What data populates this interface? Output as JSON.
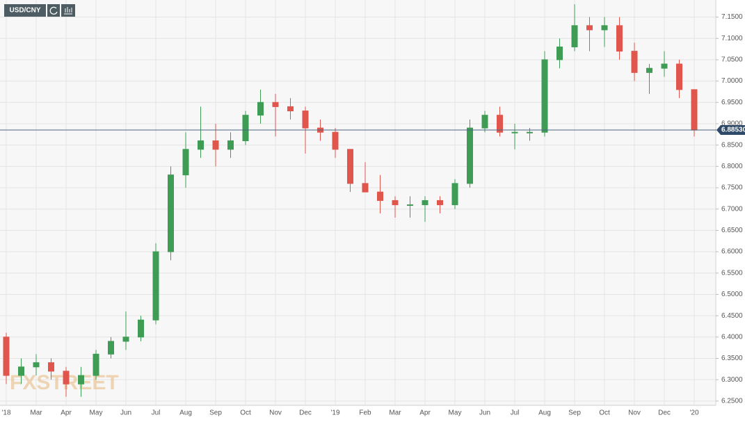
{
  "chart_data": {
    "type": "candlestick",
    "symbol": "USD/CNY",
    "watermark": "FXSTREET",
    "categories": [
      "'18",
      null,
      "Mar",
      null,
      "Apr",
      null,
      "May",
      null,
      "Jun",
      null,
      "Jul",
      null,
      "Aug",
      null,
      "Sep",
      null,
      "Oct",
      null,
      "Nov",
      null,
      "Dec",
      null,
      "'19",
      null,
      "Feb",
      null,
      "Mar",
      null,
      "Apr",
      null,
      "May",
      null,
      "Jun",
      null,
      "Jul",
      null,
      "Aug",
      null,
      "Sep",
      null,
      "Oct",
      null,
      "Nov",
      null,
      "Dec",
      null,
      "'20"
    ],
    "open": [
      6.4,
      6.31,
      6.33,
      6.34,
      6.32,
      6.29,
      6.31,
      6.36,
      6.39,
      6.4,
      6.44,
      6.6,
      6.78,
      6.84,
      6.86,
      6.84,
      6.86,
      6.92,
      6.95,
      6.94,
      6.93,
      6.89,
      6.88,
      6.84,
      6.76,
      6.74,
      6.72,
      6.71,
      6.71,
      6.72,
      6.71,
      6.76,
      6.89,
      6.92,
      6.88,
      6.88,
      6.88,
      7.05,
      7.08,
      7.13,
      7.12,
      7.13,
      7.07,
      7.02,
      7.03,
      7.04,
      6.98
    ],
    "high": [
      6.41,
      6.35,
      6.36,
      6.35,
      6.33,
      6.33,
      6.37,
      6.4,
      6.46,
      6.45,
      6.62,
      6.8,
      6.88,
      6.94,
      6.9,
      6.88,
      6.93,
      6.98,
      6.97,
      6.96,
      6.94,
      6.91,
      6.89,
      6.84,
      6.81,
      6.78,
      6.73,
      6.73,
      6.73,
      6.73,
      6.77,
      6.91,
      6.93,
      6.94,
      6.9,
      6.89,
      7.07,
      7.1,
      7.18,
      7.15,
      7.15,
      7.15,
      7.09,
      7.04,
      7.07,
      7.05,
      6.98
    ],
    "low": [
      6.29,
      6.29,
      6.31,
      6.3,
      6.26,
      6.26,
      6.3,
      6.35,
      6.37,
      6.39,
      6.43,
      6.58,
      6.75,
      6.82,
      6.8,
      6.82,
      6.85,
      6.9,
      6.87,
      6.91,
      6.83,
      6.86,
      6.82,
      6.74,
      6.74,
      6.69,
      6.68,
      6.68,
      6.67,
      6.69,
      6.7,
      6.75,
      6.88,
      6.87,
      6.84,
      6.86,
      6.87,
      7.03,
      7.07,
      7.07,
      7.08,
      7.05,
      7.0,
      6.97,
      7.01,
      6.96,
      6.87
    ],
    "close": [
      6.31,
      6.33,
      6.34,
      6.32,
      6.29,
      6.31,
      6.36,
      6.39,
      6.4,
      6.44,
      6.6,
      6.78,
      6.84,
      6.86,
      6.84,
      6.86,
      6.92,
      6.95,
      6.94,
      6.93,
      6.89,
      6.88,
      6.84,
      6.76,
      6.74,
      6.72,
      6.71,
      6.71,
      6.72,
      6.71,
      6.76,
      6.89,
      6.92,
      6.88,
      6.88,
      6.88,
      7.05,
      7.08,
      7.13,
      7.12,
      7.13,
      7.07,
      7.02,
      7.03,
      7.04,
      6.98,
      6.885
    ],
    "up_color": "#3e9c55",
    "down_color": "#e0564c",
    "last": {
      "value": 6.8853,
      "label": "6.88530"
    },
    "ylim": [
      6.24,
      7.19
    ],
    "yticks": [
      {
        "value": 6.25,
        "label": "6.2500"
      },
      {
        "value": 6.3,
        "label": "6.3000"
      },
      {
        "value": 6.35,
        "label": "6.3500"
      },
      {
        "value": 6.4,
        "label": "6.4000"
      },
      {
        "value": 6.45,
        "label": "6.4500"
      },
      {
        "value": 6.5,
        "label": "6.5000"
      },
      {
        "value": 6.55,
        "label": "6.5500"
      },
      {
        "value": 6.6,
        "label": "6.6000"
      },
      {
        "value": 6.65,
        "label": "6.6500"
      },
      {
        "value": 6.7,
        "label": "6.7000"
      },
      {
        "value": 6.75,
        "label": "6.7500"
      },
      {
        "value": 6.8,
        "label": "6.8000"
      },
      {
        "value": 6.85,
        "label": "6.8500"
      },
      {
        "value": 6.9,
        "label": "6.9000"
      },
      {
        "value": 6.95,
        "label": "6.9500"
      },
      {
        "value": 7.0,
        "label": "7.0000"
      },
      {
        "value": 7.05,
        "label": "7.0500"
      },
      {
        "value": 7.1,
        "label": "7.1000"
      },
      {
        "value": 7.15,
        "label": "7.1500"
      }
    ],
    "grid": true
  }
}
